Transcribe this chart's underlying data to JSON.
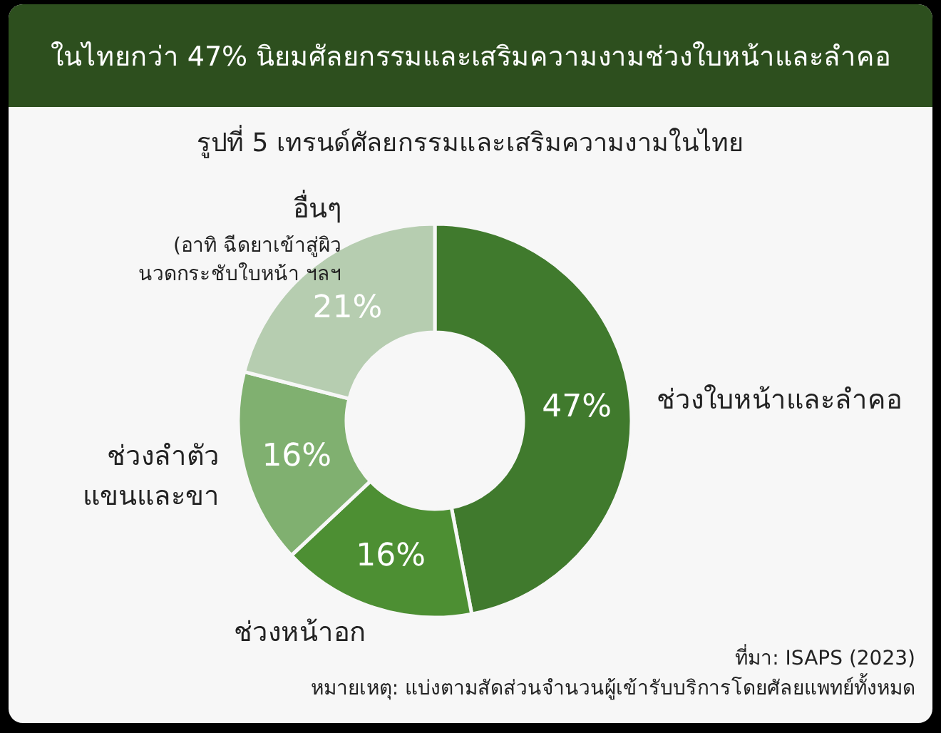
{
  "chart_data": {
    "type": "donut",
    "title": "ในไทยกว่า 47% นิยมศัลยกรรมและเสริมความงามช่วงใบหน้าและลำคอ",
    "subtitle": "รูปที่ 5 เทรนด์ศัลยกรรมและเสริมความงามในไทย",
    "categories": [
      "ช่วงใบหน้าและลำคอ",
      "ช่วงหน้าอก",
      "ช่วงลำตัว\nแขนและขา",
      "อื่นๆ\n(อาทิ ฉีดยาเข้าสู่ผิว\nนวดกระชับใบหน้า ฯลฯ"
    ],
    "values": [
      47,
      16,
      16,
      21
    ],
    "colors": [
      "#407a2d",
      "#4d8f33",
      "#80b070",
      "#b6cdb0"
    ],
    "value_labels": [
      "47%",
      "16%",
      "16%",
      "21%"
    ],
    "annotations": [
      "ที่มา: ISAPS (2023)",
      "หมายเหตุ: แบ่งตามสัดส่วนจำนวนผู้เข้ารับบริการโดยศัลยแพทย์ทั้งหมด"
    ]
  }
}
